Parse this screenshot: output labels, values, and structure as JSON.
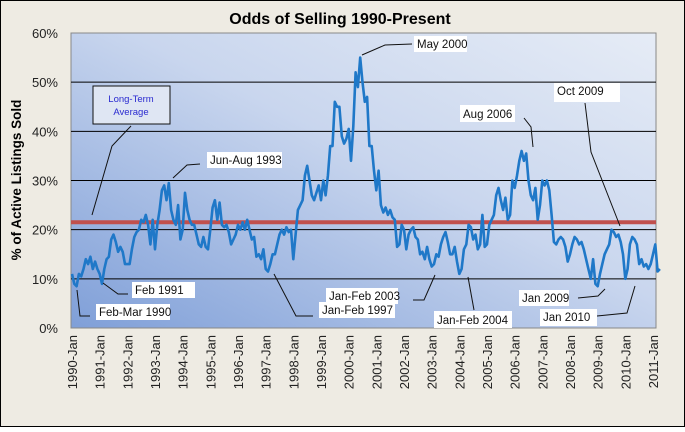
{
  "chart_data": {
    "type": "line",
    "title": "Odds of Selling 1990-Present",
    "xlabel": "",
    "ylabel": "% of Active Listings Sold",
    "ylim": [
      0,
      60
    ],
    "y_ticks": [
      "0%",
      "10%",
      "20%",
      "30%",
      "40%",
      "50%",
      "60%"
    ],
    "x_ticks": [
      "1990-Jan",
      "1991-Jan",
      "1992-Jan",
      "1993-Jan",
      "1994-Jan",
      "1995-Jan",
      "1996-Jan",
      "1997-Jan",
      "1998-Jan",
      "1999-Jan",
      "2000-Jan",
      "2001-Jan",
      "2002-Jan",
      "2003-Jan",
      "2004-Jan",
      "2005-Jan",
      "2006-Jan",
      "2007-Jan",
      "2008-Jan",
      "2009-Jan",
      "2010-Jan",
      "2011-Jan"
    ],
    "grid": "horizontal",
    "colors": {
      "series": "#1f78c8",
      "average": "#c0504d",
      "avg_label": "#2a2ad0",
      "background": "#eeebe3"
    },
    "reference_line": {
      "value": 21.5,
      "label": "Long-Term Average"
    },
    "series": [
      {
        "points": [
          [
            "1990-01",
            11
          ],
          [
            "1990-02",
            9
          ],
          [
            "1990-03",
            8.5
          ],
          [
            "1990-04",
            11
          ],
          [
            "1990-05",
            10.5
          ],
          [
            "1990-06",
            12
          ],
          [
            "1990-07",
            14
          ],
          [
            "1990-08",
            13
          ],
          [
            "1990-09",
            14.5
          ],
          [
            "1990-10",
            12
          ],
          [
            "1990-11",
            13.5
          ],
          [
            "1990-12",
            12
          ],
          [
            "1991-01",
            11
          ],
          [
            "1991-02",
            9
          ],
          [
            "1991-03",
            12
          ],
          [
            "1991-04",
            14
          ],
          [
            "1991-05",
            14.5
          ],
          [
            "1991-06",
            18
          ],
          [
            "1991-07",
            19
          ],
          [
            "1991-08",
            17.5
          ],
          [
            "1991-09",
            15.5
          ],
          [
            "1991-10",
            16.5
          ],
          [
            "1991-11",
            15.5
          ],
          [
            "1991-12",
            13
          ],
          [
            "1992-01",
            13
          ],
          [
            "1992-02",
            13
          ],
          [
            "1992-03",
            16
          ],
          [
            "1992-04",
            18.5
          ],
          [
            "1992-05",
            19.5
          ],
          [
            "1992-06",
            20
          ],
          [
            "1992-07",
            22
          ],
          [
            "1992-08",
            21.5
          ],
          [
            "1992-09",
            23
          ],
          [
            "1992-10",
            21
          ],
          [
            "1992-11",
            17
          ],
          [
            "1992-12",
            22
          ],
          [
            "1993-01",
            16
          ],
          [
            "1993-02",
            21
          ],
          [
            "1993-03",
            24
          ],
          [
            "1993-04",
            28
          ],
          [
            "1993-05",
            29
          ],
          [
            "1993-06",
            26
          ],
          [
            "1993-07",
            29.5
          ],
          [
            "1993-08",
            24
          ],
          [
            "1993-09",
            22
          ],
          [
            "1993-10",
            21
          ],
          [
            "1993-11",
            25
          ],
          [
            "1993-12",
            18
          ],
          [
            "1994-01",
            20
          ],
          [
            "1994-02",
            27.5
          ],
          [
            "1994-03",
            24
          ],
          [
            "1994-04",
            22
          ],
          [
            "1994-05",
            21
          ],
          [
            "1994-06",
            21
          ],
          [
            "1994-07",
            19
          ],
          [
            "1994-08",
            17
          ],
          [
            "1994-09",
            16.5
          ],
          [
            "1994-10",
            18.5
          ],
          [
            "1994-11",
            16.5
          ],
          [
            "1994-12",
            16
          ],
          [
            "1995-01",
            20
          ],
          [
            "1995-02",
            24.5
          ],
          [
            "1995-03",
            26
          ],
          [
            "1995-04",
            22
          ],
          [
            "1995-05",
            25.5
          ],
          [
            "1995-06",
            21
          ],
          [
            "1995-07",
            20.5
          ],
          [
            "1995-08",
            21
          ],
          [
            "1995-09",
            19.5
          ],
          [
            "1995-10",
            17
          ],
          [
            "1995-11",
            18
          ],
          [
            "1995-12",
            19
          ],
          [
            "1996-01",
            21
          ],
          [
            "1996-02",
            20
          ],
          [
            "1996-03",
            21.5
          ],
          [
            "1996-04",
            20
          ],
          [
            "1996-05",
            22
          ],
          [
            "1996-06",
            20
          ],
          [
            "1996-07",
            18
          ],
          [
            "1996-08",
            18.5
          ],
          [
            "1996-09",
            14.5
          ],
          [
            "1996-10",
            15
          ],
          [
            "1996-11",
            14
          ],
          [
            "1996-12",
            16
          ],
          [
            "1997-01",
            12
          ],
          [
            "1997-02",
            11.5
          ],
          [
            "1997-03",
            13
          ],
          [
            "1997-04",
            15
          ],
          [
            "1997-05",
            15
          ],
          [
            "1997-06",
            17
          ],
          [
            "1997-07",
            19
          ],
          [
            "1997-08",
            20
          ],
          [
            "1997-09",
            19
          ],
          [
            "1997-10",
            20.5
          ],
          [
            "1997-11",
            19.5
          ],
          [
            "1997-12",
            20
          ],
          [
            "1998-01",
            14
          ],
          [
            "1998-02",
            19
          ],
          [
            "1998-03",
            24
          ],
          [
            "1998-04",
            25
          ],
          [
            "1998-05",
            26
          ],
          [
            "1998-06",
            31
          ],
          [
            "1998-07",
            33
          ],
          [
            "1998-08",
            30
          ],
          [
            "1998-09",
            27
          ],
          [
            "1998-10",
            26
          ],
          [
            "1998-11",
            27.5
          ],
          [
            "1998-12",
            29
          ],
          [
            "1999-01",
            26
          ],
          [
            "1999-02",
            30
          ],
          [
            "1999-03",
            27
          ],
          [
            "1999-04",
            31
          ],
          [
            "1999-05",
            37
          ],
          [
            "1999-06",
            37
          ],
          [
            "1999-07",
            46
          ],
          [
            "1999-08",
            45
          ],
          [
            "1999-09",
            45
          ],
          [
            "1999-10",
            39
          ],
          [
            "1999-11",
            37.5
          ],
          [
            "1999-12",
            38.5
          ],
          [
            "2000-01",
            40.5
          ],
          [
            "2000-02",
            34
          ],
          [
            "2000-03",
            41
          ],
          [
            "2000-04",
            52
          ],
          [
            "2000-05",
            49
          ],
          [
            "2000-06",
            55
          ],
          [
            "2000-07",
            50
          ],
          [
            "2000-08",
            46
          ],
          [
            "2000-09",
            47
          ],
          [
            "2000-10",
            37
          ],
          [
            "2000-11",
            37
          ],
          [
            "2000-12",
            32
          ],
          [
            "2001-01",
            28
          ],
          [
            "2001-02",
            32
          ],
          [
            "2001-03",
            25
          ],
          [
            "2001-04",
            23.5
          ],
          [
            "2001-05",
            24.5
          ],
          [
            "2001-06",
            23
          ],
          [
            "2001-07",
            24
          ],
          [
            "2001-08",
            22.5
          ],
          [
            "2001-09",
            22
          ],
          [
            "2001-10",
            16.5
          ],
          [
            "2001-11",
            17
          ],
          [
            "2001-12",
            21
          ],
          [
            "2002-01",
            20
          ],
          [
            "2002-02",
            16
          ],
          [
            "2002-03",
            19
          ],
          [
            "2002-04",
            20
          ],
          [
            "2002-05",
            20.5
          ],
          [
            "2002-06",
            18.5
          ],
          [
            "2002-07",
            18
          ],
          [
            "2002-08",
            15
          ],
          [
            "2002-09",
            15.5
          ],
          [
            "2002-10",
            14
          ],
          [
            "2002-11",
            16.5
          ],
          [
            "2002-12",
            14
          ],
          [
            "2003-01",
            12.5
          ],
          [
            "2003-02",
            13
          ],
          [
            "2003-03",
            15
          ],
          [
            "2003-04",
            14.5
          ],
          [
            "2003-05",
            17
          ],
          [
            "2003-06",
            18.5
          ],
          [
            "2003-07",
            19.5
          ],
          [
            "2003-08",
            17.5
          ],
          [
            "2003-09",
            15
          ],
          [
            "2003-10",
            15
          ],
          [
            "2003-11",
            16.5
          ],
          [
            "2003-12",
            13.5
          ],
          [
            "2004-01",
            11
          ],
          [
            "2004-02",
            12
          ],
          [
            "2004-03",
            16
          ],
          [
            "2004-04",
            17
          ],
          [
            "2004-05",
            21
          ],
          [
            "2004-06",
            20.5
          ],
          [
            "2004-07",
            18
          ],
          [
            "2004-08",
            19
          ],
          [
            "2004-09",
            16
          ],
          [
            "2004-10",
            17
          ],
          [
            "2004-11",
            23
          ],
          [
            "2004-12",
            16.5
          ],
          [
            "2005-01",
            17
          ],
          [
            "2005-02",
            21
          ],
          [
            "2005-03",
            22
          ],
          [
            "2005-04",
            23
          ],
          [
            "2005-05",
            27
          ],
          [
            "2005-06",
            28.5
          ],
          [
            "2005-07",
            26
          ],
          [
            "2005-08",
            24
          ],
          [
            "2005-09",
            26.5
          ],
          [
            "2005-10",
            22
          ],
          [
            "2005-11",
            23
          ],
          [
            "2005-12",
            30
          ],
          [
            "2006-01",
            28.5
          ],
          [
            "2006-02",
            31
          ],
          [
            "2006-03",
            34
          ],
          [
            "2006-04",
            36
          ],
          [
            "2006-05",
            34
          ],
          [
            "2006-06",
            35.5
          ],
          [
            "2006-07",
            30
          ],
          [
            "2006-08",
            27
          ],
          [
            "2006-09",
            26
          ],
          [
            "2006-10",
            28.5
          ],
          [
            "2006-11",
            22
          ],
          [
            "2006-12",
            25
          ],
          [
            "2007-01",
            30
          ],
          [
            "2007-02",
            29
          ],
          [
            "2007-03",
            30
          ],
          [
            "2007-04",
            28
          ],
          [
            "2007-05",
            23
          ],
          [
            "2007-06",
            17.5
          ],
          [
            "2007-07",
            17
          ],
          [
            "2007-08",
            18
          ],
          [
            "2007-09",
            18.5
          ],
          [
            "2007-10",
            18
          ],
          [
            "2007-11",
            16.5
          ],
          [
            "2007-12",
            13.5
          ],
          [
            "2008-01",
            15
          ],
          [
            "2008-02",
            17
          ],
          [
            "2008-03",
            18.5
          ],
          [
            "2008-04",
            18
          ],
          [
            "2008-05",
            17
          ],
          [
            "2008-06",
            17.5
          ],
          [
            "2008-07",
            16
          ],
          [
            "2008-08",
            14
          ],
          [
            "2008-09",
            12
          ],
          [
            "2008-10",
            10
          ],
          [
            "2008-11",
            14
          ],
          [
            "2008-12",
            9
          ],
          [
            "2009-01",
            8.5
          ],
          [
            "2009-02",
            11
          ],
          [
            "2009-03",
            13
          ],
          [
            "2009-04",
            15
          ],
          [
            "2009-05",
            16
          ],
          [
            "2009-06",
            17
          ],
          [
            "2009-07",
            20
          ],
          [
            "2009-08",
            19.5
          ],
          [
            "2009-09",
            18.5
          ],
          [
            "2009-10",
            19
          ],
          [
            "2009-11",
            17.5
          ],
          [
            "2009-12",
            15
          ],
          [
            "2010-01",
            10
          ],
          [
            "2010-02",
            12
          ],
          [
            "2010-03",
            17
          ],
          [
            "2010-04",
            18.5
          ],
          [
            "2010-05",
            18
          ],
          [
            "2010-06",
            17
          ],
          [
            "2010-07",
            13
          ],
          [
            "2010-08",
            14
          ],
          [
            "2010-09",
            12.5
          ],
          [
            "2010-10",
            13
          ],
          [
            "2010-11",
            12
          ],
          [
            "2010-12",
            13
          ],
          [
            "2011-01",
            15
          ],
          [
            "2011-02",
            17
          ],
          [
            "2011-03",
            11.5
          ],
          [
            "2011-04",
            12
          ]
        ]
      }
    ],
    "annotations": {
      "long_term_average": "Long-Term Average",
      "jun_aug_1993": "Jun-Aug 1993",
      "may_2000": "May 2000",
      "oct_2009": "Oct 2009",
      "aug_2006": "Aug 2006",
      "feb_1991": "Feb 1991",
      "feb_mar_1990": "Feb-Mar 1990",
      "jan_feb_2003": "Jan-Feb 2003",
      "jan_feb_1997": "Jan-Feb 1997",
      "jan_feb_2004": "Jan-Feb 2004",
      "jan_2009": "Jan 2009",
      "jan_2010": "Jan 2010"
    }
  }
}
